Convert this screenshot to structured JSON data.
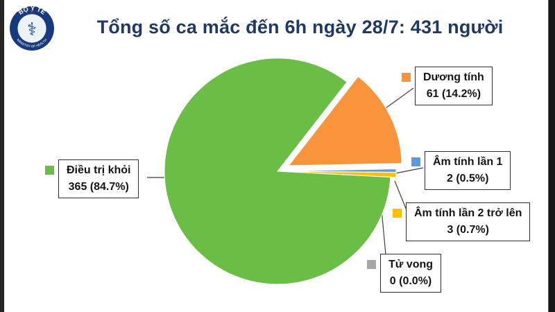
{
  "page": {
    "title_color": "#1f3864",
    "background": "#ffffff"
  },
  "logo": {
    "text_top": "BỘ Y TẾ",
    "text_bottom": "MINISTRY OF HEALTH",
    "symbol": "⚕",
    "star": "★",
    "ring_color": "#17397e",
    "star_color": "#dc2d2d"
  },
  "chart_data": {
    "type": "pie",
    "title": "Tổng số ca mắc đến 6h ngày 28/7: 431 người",
    "total": 431,
    "start_angle_deg": 93,
    "direction": "clockwise",
    "legend_position": "callouts",
    "slices": [
      {
        "label": "Điều trị khỏi",
        "value": 365,
        "pct": 84.7,
        "value_text": "365 (84.7%)",
        "color": "#6abd45",
        "explode": 0
      },
      {
        "label": "Dương tính",
        "value": 61,
        "pct": 14.2,
        "value_text": "61 (14.2%)",
        "color": "#f8943c",
        "explode": 18
      },
      {
        "label": "Âm tính lần 1",
        "value": 2,
        "pct": 0.5,
        "value_text": "2 (0.5%)",
        "color": "#5b9bd5",
        "explode": 8
      },
      {
        "label": "Âm tính lần 2 trở lên",
        "value": 3,
        "pct": 0.7,
        "value_text": "3 (0.7%)",
        "color": "#ffc000",
        "explode": 8
      },
      {
        "label": "Tử vong",
        "value": 0,
        "pct": 0.0,
        "value_text": "0 (0.0%)",
        "color": "#a6a6a6",
        "explode": 8
      }
    ]
  }
}
